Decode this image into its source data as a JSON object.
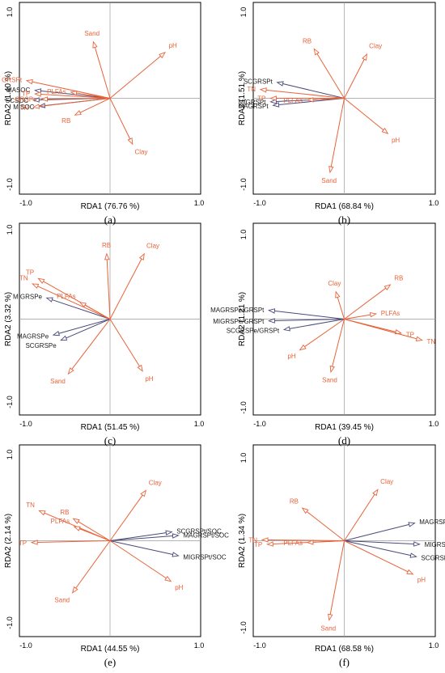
{
  "colors": {
    "env": "#e8633a",
    "resp": "#4a4a7a",
    "resp_label": "#1a1a1a",
    "env_label": "#e8633a"
  },
  "panels": [
    {
      "label": "(a)",
      "chart_data": {
        "type": "scatter",
        "xlabel": "RDA1 (76.76 %)",
        "ylabel": "RDA2 (1.40 %)",
        "xlim": [
          -1.0,
          1.0
        ],
        "ylim": [
          -1.0,
          1.0
        ],
        "xticks": [
          "-1.0",
          "1.0"
        ],
        "yticks": [
          "1.0",
          "-1.0"
        ],
        "env_vectors": [
          {
            "name": "Sand",
            "x": -0.2,
            "y": 0.64
          },
          {
            "name": "pH",
            "x": 0.66,
            "y": 0.52
          },
          {
            "name": "GRSPt",
            "x": -1.0,
            "y": 0.2
          },
          {
            "name": "PLFAs",
            "x": -0.47,
            "y": 0.07
          },
          {
            "name": "TP",
            "x": -0.9,
            "y": 0.05
          },
          {
            "name": "GRSPe",
            "x": -0.82,
            "y": -0.01
          },
          {
            "name": "TN",
            "x": -0.92,
            "y": -0.1
          },
          {
            "name": "RB",
            "x": -0.42,
            "y": -0.19
          },
          {
            "name": "Clay",
            "x": 0.27,
            "y": -0.52
          }
        ],
        "resp_vectors": [
          {
            "name": "MASOC",
            "x": -0.9,
            "y": 0.09
          },
          {
            "name": "SCSOC",
            "x": -0.92,
            "y": -0.02
          },
          {
            "name": "MISOC",
            "x": -0.85,
            "y": -0.09
          }
        ]
      }
    },
    {
      "label": "(b)",
      "chart_data": {
        "type": "scatter",
        "xlabel": "RDA1 (68.84 %)",
        "ylabel": "RDA2 (1.51 %)",
        "xlim": [
          -1.0,
          1.0
        ],
        "ylim": [
          -1.0,
          1.0
        ],
        "xticks": [
          "-1.0",
          "1.0"
        ],
        "yticks": [
          "1.0",
          "-1.0"
        ],
        "env_vectors": [
          {
            "name": "RB",
            "x": -0.36,
            "y": 0.56
          },
          {
            "name": "Clay",
            "x": 0.27,
            "y": 0.5
          },
          {
            "name": "TN",
            "x": -1.0,
            "y": 0.1
          },
          {
            "name": "TP",
            "x": -0.88,
            "y": 0.0
          },
          {
            "name": "PLFAs",
            "x": -0.44,
            "y": -0.02
          },
          {
            "name": "pH",
            "x": 0.52,
            "y": -0.4
          },
          {
            "name": "Sand",
            "x": -0.17,
            "y": -0.84
          }
        ],
        "resp_vectors": [
          {
            "name": "SCGRSPt",
            "x": -0.8,
            "y": 0.18
          },
          {
            "name": "MIGRSPt",
            "x": -0.88,
            "y": -0.04
          },
          {
            "name": "MAGRSPt",
            "x": -0.85,
            "y": -0.08
          }
        ]
      }
    },
    {
      "label": "(c)",
      "chart_data": {
        "type": "scatter",
        "xlabel": "RDA1 (51.45 %)",
        "ylabel": "RDA2 (3.32 %)",
        "xlim": [
          -1.0,
          1.0
        ],
        "ylim": [
          -1.0,
          1.0
        ],
        "xticks": [
          "-1.0",
          "1.0"
        ],
        "yticks": [
          "1.0",
          "-1.0"
        ],
        "env_vectors": [
          {
            "name": "RB",
            "x": -0.04,
            "y": 0.74
          },
          {
            "name": "Clay",
            "x": 0.41,
            "y": 0.74
          },
          {
            "name": "TP",
            "x": -0.86,
            "y": 0.46
          },
          {
            "name": "TN",
            "x": -0.93,
            "y": 0.4
          },
          {
            "name": "PLFAs",
            "x": -0.36,
            "y": 0.19
          },
          {
            "name": "Sand",
            "x": -0.5,
            "y": -0.62
          },
          {
            "name": "pH",
            "x": 0.39,
            "y": -0.59
          }
        ],
        "resp_vectors": [
          {
            "name": "MIGRSPe",
            "x": -0.76,
            "y": 0.24
          },
          {
            "name": "MAGRSPe",
            "x": -0.68,
            "y": -0.18
          },
          {
            "name": "SCGRSPe",
            "x": -0.59,
            "y": -0.24
          }
        ]
      }
    },
    {
      "label": "(d)",
      "chart_data": {
        "type": "scatter",
        "xlabel": "RDA1 (39.45 %)",
        "ylabel": "RDA2 (1.21 %)",
        "xlim": [
          -1.0,
          1.0
        ],
        "ylim": [
          -1.0,
          1.0
        ],
        "xticks": [
          "-1.0",
          "1.0"
        ],
        "yticks": [
          "1.0",
          "-1.0"
        ],
        "env_vectors": [
          {
            "name": "Clay",
            "x": -0.1,
            "y": 0.31
          },
          {
            "name": "RB",
            "x": 0.55,
            "y": 0.39
          },
          {
            "name": "PLFAs",
            "x": 0.38,
            "y": 0.06
          },
          {
            "name": "TP",
            "x": 0.68,
            "y": -0.16
          },
          {
            "name": "TN",
            "x": 0.93,
            "y": -0.24
          },
          {
            "name": "pH",
            "x": -0.53,
            "y": -0.35
          },
          {
            "name": "Sand",
            "x": -0.16,
            "y": -0.6
          }
        ],
        "resp_vectors": [
          {
            "name": "MAGRSPe/GRSPt",
            "x": -0.9,
            "y": 0.1
          },
          {
            "name": "MIGRSPe/GRSPt",
            "x": -0.9,
            "y": -0.02
          },
          {
            "name": "SCGRSPe/GRSPt",
            "x": -0.72,
            "y": -0.12
          }
        ]
      }
    },
    {
      "label": "(e)",
      "chart_data": {
        "type": "scatter",
        "xlabel": "RDA1 (44.55 %)",
        "ylabel": "RDA2 (2.14 %)",
        "xlim": [
          -1.0,
          1.0
        ],
        "ylim": [
          -1.0,
          1.0
        ],
        "xticks": [
          "-1.0",
          "1.0"
        ],
        "yticks": [
          "1.0",
          "-1.0"
        ],
        "env_vectors": [
          {
            "name": "Clay",
            "x": 0.43,
            "y": 0.57
          },
          {
            "name": "TN",
            "x": -0.85,
            "y": 0.34
          },
          {
            "name": "RB",
            "x": -0.44,
            "y": 0.25
          },
          {
            "name": "PLFAs",
            "x": -0.43,
            "y": 0.16
          },
          {
            "name": "TP",
            "x": -0.94,
            "y": -0.02
          },
          {
            "name": "pH",
            "x": 0.73,
            "y": -0.46
          },
          {
            "name": "Sand",
            "x": -0.45,
            "y": -0.59
          }
        ],
        "resp_vectors": [
          {
            "name": "SCGRSPt/SOC",
            "x": 0.74,
            "y": 0.1
          },
          {
            "name": "MAGRSPt/SOC",
            "x": 0.82,
            "y": 0.06
          },
          {
            "name": "MIGRSPt/SOC",
            "x": 0.82,
            "y": -0.17
          }
        ]
      }
    },
    {
      "label": "(f)",
      "chart_data": {
        "type": "scatter",
        "xlabel": "RDA1 (68.58 %)",
        "ylabel": "RDA2 (1.34 %)",
        "xlim": [
          -1.0,
          1.0
        ],
        "ylim": [
          -1.0,
          1.0
        ],
        "xticks": [
          "-1.0",
          "1.0"
        ],
        "yticks": [
          "1.0",
          "-1.0"
        ],
        "env_vectors": [
          {
            "name": "Clay",
            "x": 0.4,
            "y": 0.58
          },
          {
            "name": "RB",
            "x": -0.5,
            "y": 0.37
          },
          {
            "name": "TN",
            "x": -0.98,
            "y": 0.01
          },
          {
            "name": "TP",
            "x": -0.92,
            "y": -0.04
          },
          {
            "name": "PLFAs",
            "x": -0.44,
            "y": -0.02
          },
          {
            "name": "pH",
            "x": 0.82,
            "y": -0.38
          },
          {
            "name": "Sand",
            "x": -0.18,
            "y": -0.9
          }
        ],
        "resp_vectors": [
          {
            "name": "MAGRSPe/SOC",
            "x": 0.84,
            "y": 0.2
          },
          {
            "name": "MIGRSPe/SOC",
            "x": 0.9,
            "y": -0.04
          },
          {
            "name": "SCGRSPe/SOC",
            "x": 0.86,
            "y": -0.18
          }
        ]
      }
    }
  ]
}
